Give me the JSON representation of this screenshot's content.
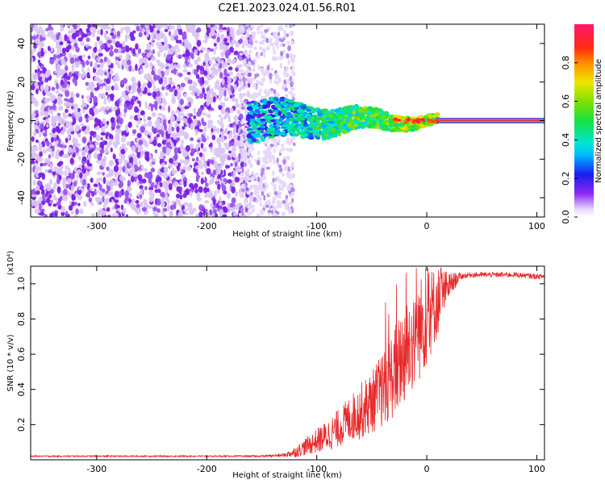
{
  "title": "C2E1.2023.024.01.56.R01",
  "colors": {
    "snr_line": "#e8282a",
    "scatter_purple": "#7b1fe6",
    "scatter_light": "#d9c4f5",
    "frame": "#000000"
  },
  "chart_data": [
    {
      "type": "heatmap",
      "xlabel": "Height of straight line (km)",
      "ylabel": "Frequency (Hz)",
      "xlim": [
        -360,
        107
      ],
      "ylim": [
        -50,
        50
      ],
      "x_ticks": [
        -300,
        -200,
        -100,
        0,
        100
      ],
      "x_tick_labels": [
        "-300",
        "-200",
        "-100",
        "0",
        "100"
      ],
      "y_ticks": [
        -40,
        -20,
        0,
        20,
        40
      ],
      "y_tick_labels": [
        "-40",
        "-20",
        "0",
        "20",
        "40"
      ],
      "colorbar": {
        "label": "Normalized spectral amplitude",
        "range": [
          0.0,
          1.0
        ],
        "ticks": [
          0.0,
          0.2,
          0.4,
          0.6,
          0.8
        ],
        "tick_labels": [
          "0.0",
          "0.2",
          "0.4",
          "0.6",
          "0.8"
        ]
      },
      "regions": [
        {
          "x": [
            -360,
            -165
          ],
          "freq_spread": 50,
          "amplitude": 0.1
        },
        {
          "x": [
            -165,
            -120
          ],
          "freq_spread": 50,
          "amplitude": 0.05
        },
        {
          "x": [
            -160,
            -40
          ],
          "freq_spread": 8,
          "amplitude": 0.35
        },
        {
          "x": [
            -40,
            10
          ],
          "freq_spread": 4,
          "amplitude": 0.55
        },
        {
          "x": [
            10,
            107
          ],
          "freq_spread": 1,
          "amplitude": 0.95
        }
      ]
    },
    {
      "type": "line",
      "xlabel": "Height of straight line (km)",
      "ylabel": "SNR (10 * v/v)",
      "y_multiplier": "(x10⁴)",
      "xlim": [
        -360,
        107
      ],
      "ylim": [
        0,
        1.1
      ],
      "x_ticks": [
        -300,
        -200,
        -100,
        0,
        100
      ],
      "x_tick_labels": [
        "-300",
        "-200",
        "-100",
        "0",
        "100"
      ],
      "y_ticks": [
        0.2,
        0.4,
        0.6,
        0.8,
        1.0
      ],
      "y_tick_labels": [
        "0.2",
        "0.4",
        "0.6",
        "0.8",
        "1.0"
      ],
      "series": [
        {
          "x": [
            -360,
            -340,
            -300,
            -260,
            -220,
            -180,
            -150,
            -130,
            -120,
            -110,
            -100,
            -90,
            -80,
            -70,
            -60,
            -50,
            -40,
            -30,
            -20,
            -10,
            0,
            10,
            20,
            30,
            40,
            60,
            80,
            100,
            107
          ],
          "y": [
            0.02,
            0.02,
            0.02,
            0.02,
            0.02,
            0.02,
            0.02,
            0.025,
            0.04,
            0.07,
            0.1,
            0.13,
            0.17,
            0.22,
            0.26,
            0.31,
            0.38,
            0.47,
            0.58,
            0.68,
            0.78,
            0.88,
            0.98,
            1.04,
            1.05,
            1.05,
            1.05,
            1.04,
            1.04
          ],
          "noise": [
            0.004,
            0.004,
            0.004,
            0.004,
            0.004,
            0.004,
            0.005,
            0.01,
            0.03,
            0.05,
            0.07,
            0.09,
            0.11,
            0.13,
            0.16,
            0.18,
            0.22,
            0.26,
            0.3,
            0.3,
            0.28,
            0.2,
            0.08,
            0.02,
            0.015,
            0.015,
            0.015,
            0.015,
            0.015
          ]
        }
      ]
    }
  ]
}
